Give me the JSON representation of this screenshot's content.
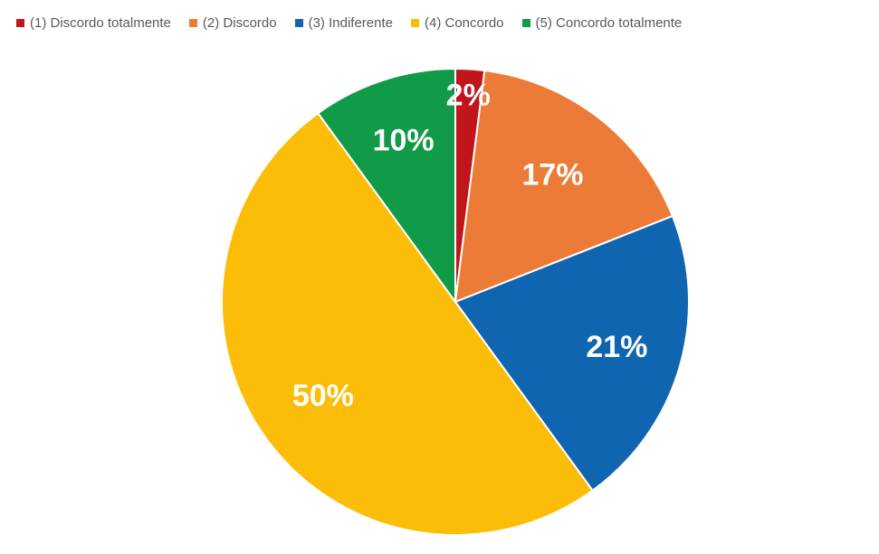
{
  "chart_data": {
    "type": "pie",
    "title": "",
    "categories": [
      "(1) Discordo totalmente",
      "(2) Discordo",
      "(3) Indiferente",
      "(4) Concordo",
      "(5) Concordo totalmente"
    ],
    "values": [
      2,
      17,
      21,
      50,
      10
    ],
    "data_labels": [
      "2%",
      "17%",
      "21%",
      "50%",
      "10%"
    ],
    "colors": [
      "#c0161b",
      "#ec7b37",
      "#0f65b0",
      "#fbbd08",
      "#119a48"
    ],
    "legend_position": "top",
    "start_angle_deg": 0,
    "direction": "clockwise"
  }
}
